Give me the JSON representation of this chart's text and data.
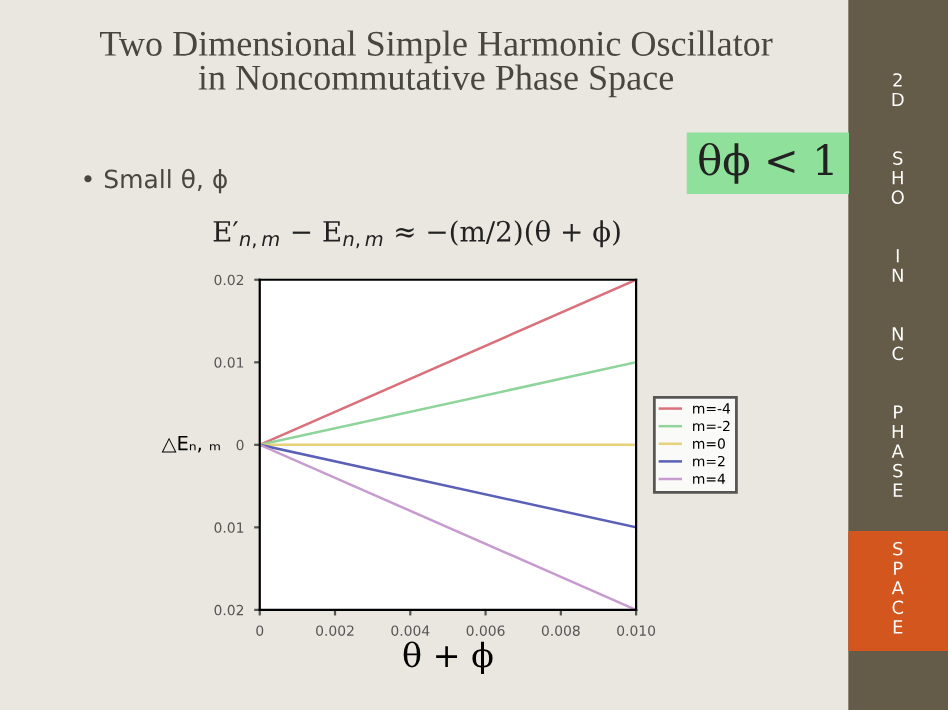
{
  "chart_data": {
    "type": "line",
    "title": "Two Dimensional Simple Harmonic Oscillator\nin Noncommutative Phase Space",
    "xlabel": "θ + ϕ",
    "ylabel": "△Eₙ, ₘ",
    "x": [
      0,
      0.01
    ],
    "series": [
      {
        "name": "m=-4",
        "color": "#d9707a",
        "values": [
          0,
          0.02
        ]
      },
      {
        "name": "m=-2",
        "color": "#8fd49a",
        "values": [
          0,
          0.01
        ]
      },
      {
        "name": "m=0",
        "color": "#e6d27a",
        "values": [
          0,
          0
        ]
      },
      {
        "name": "m=2",
        "color": "#5a5fb8",
        "values": [
          0,
          -0.01
        ]
      },
      {
        "name": "m=4",
        "color": "#c79ad0",
        "values": [
          0,
          -0.02
        ]
      }
    ],
    "xlim": [
      0,
      0.01
    ],
    "ylim": [
      -0.02,
      0.02
    ],
    "xticks": [
      0,
      0.002,
      0.004,
      0.006,
      0.008,
      {
        "value": 0.01,
        "label": "0.010"
      }
    ],
    "yticks": [
      {
        "value": -0.02,
        "label": "0.02"
      },
      {
        "value": -0.01,
        "label": "0.01"
      },
      0,
      0.01,
      0.02
    ],
    "legend": "right",
    "grid": false,
    "marker": "none",
    "line_style": "solid",
    "annotations": [
      "• Small θ, ϕ",
      "E′$_{n,m}$ − E$_{n,m}$ ≈ −(m/2)(θ + ϕ)",
      "θϕ < 1",
      "2D SHO IN NC PHASE SPACE"
    ]
  }
}
